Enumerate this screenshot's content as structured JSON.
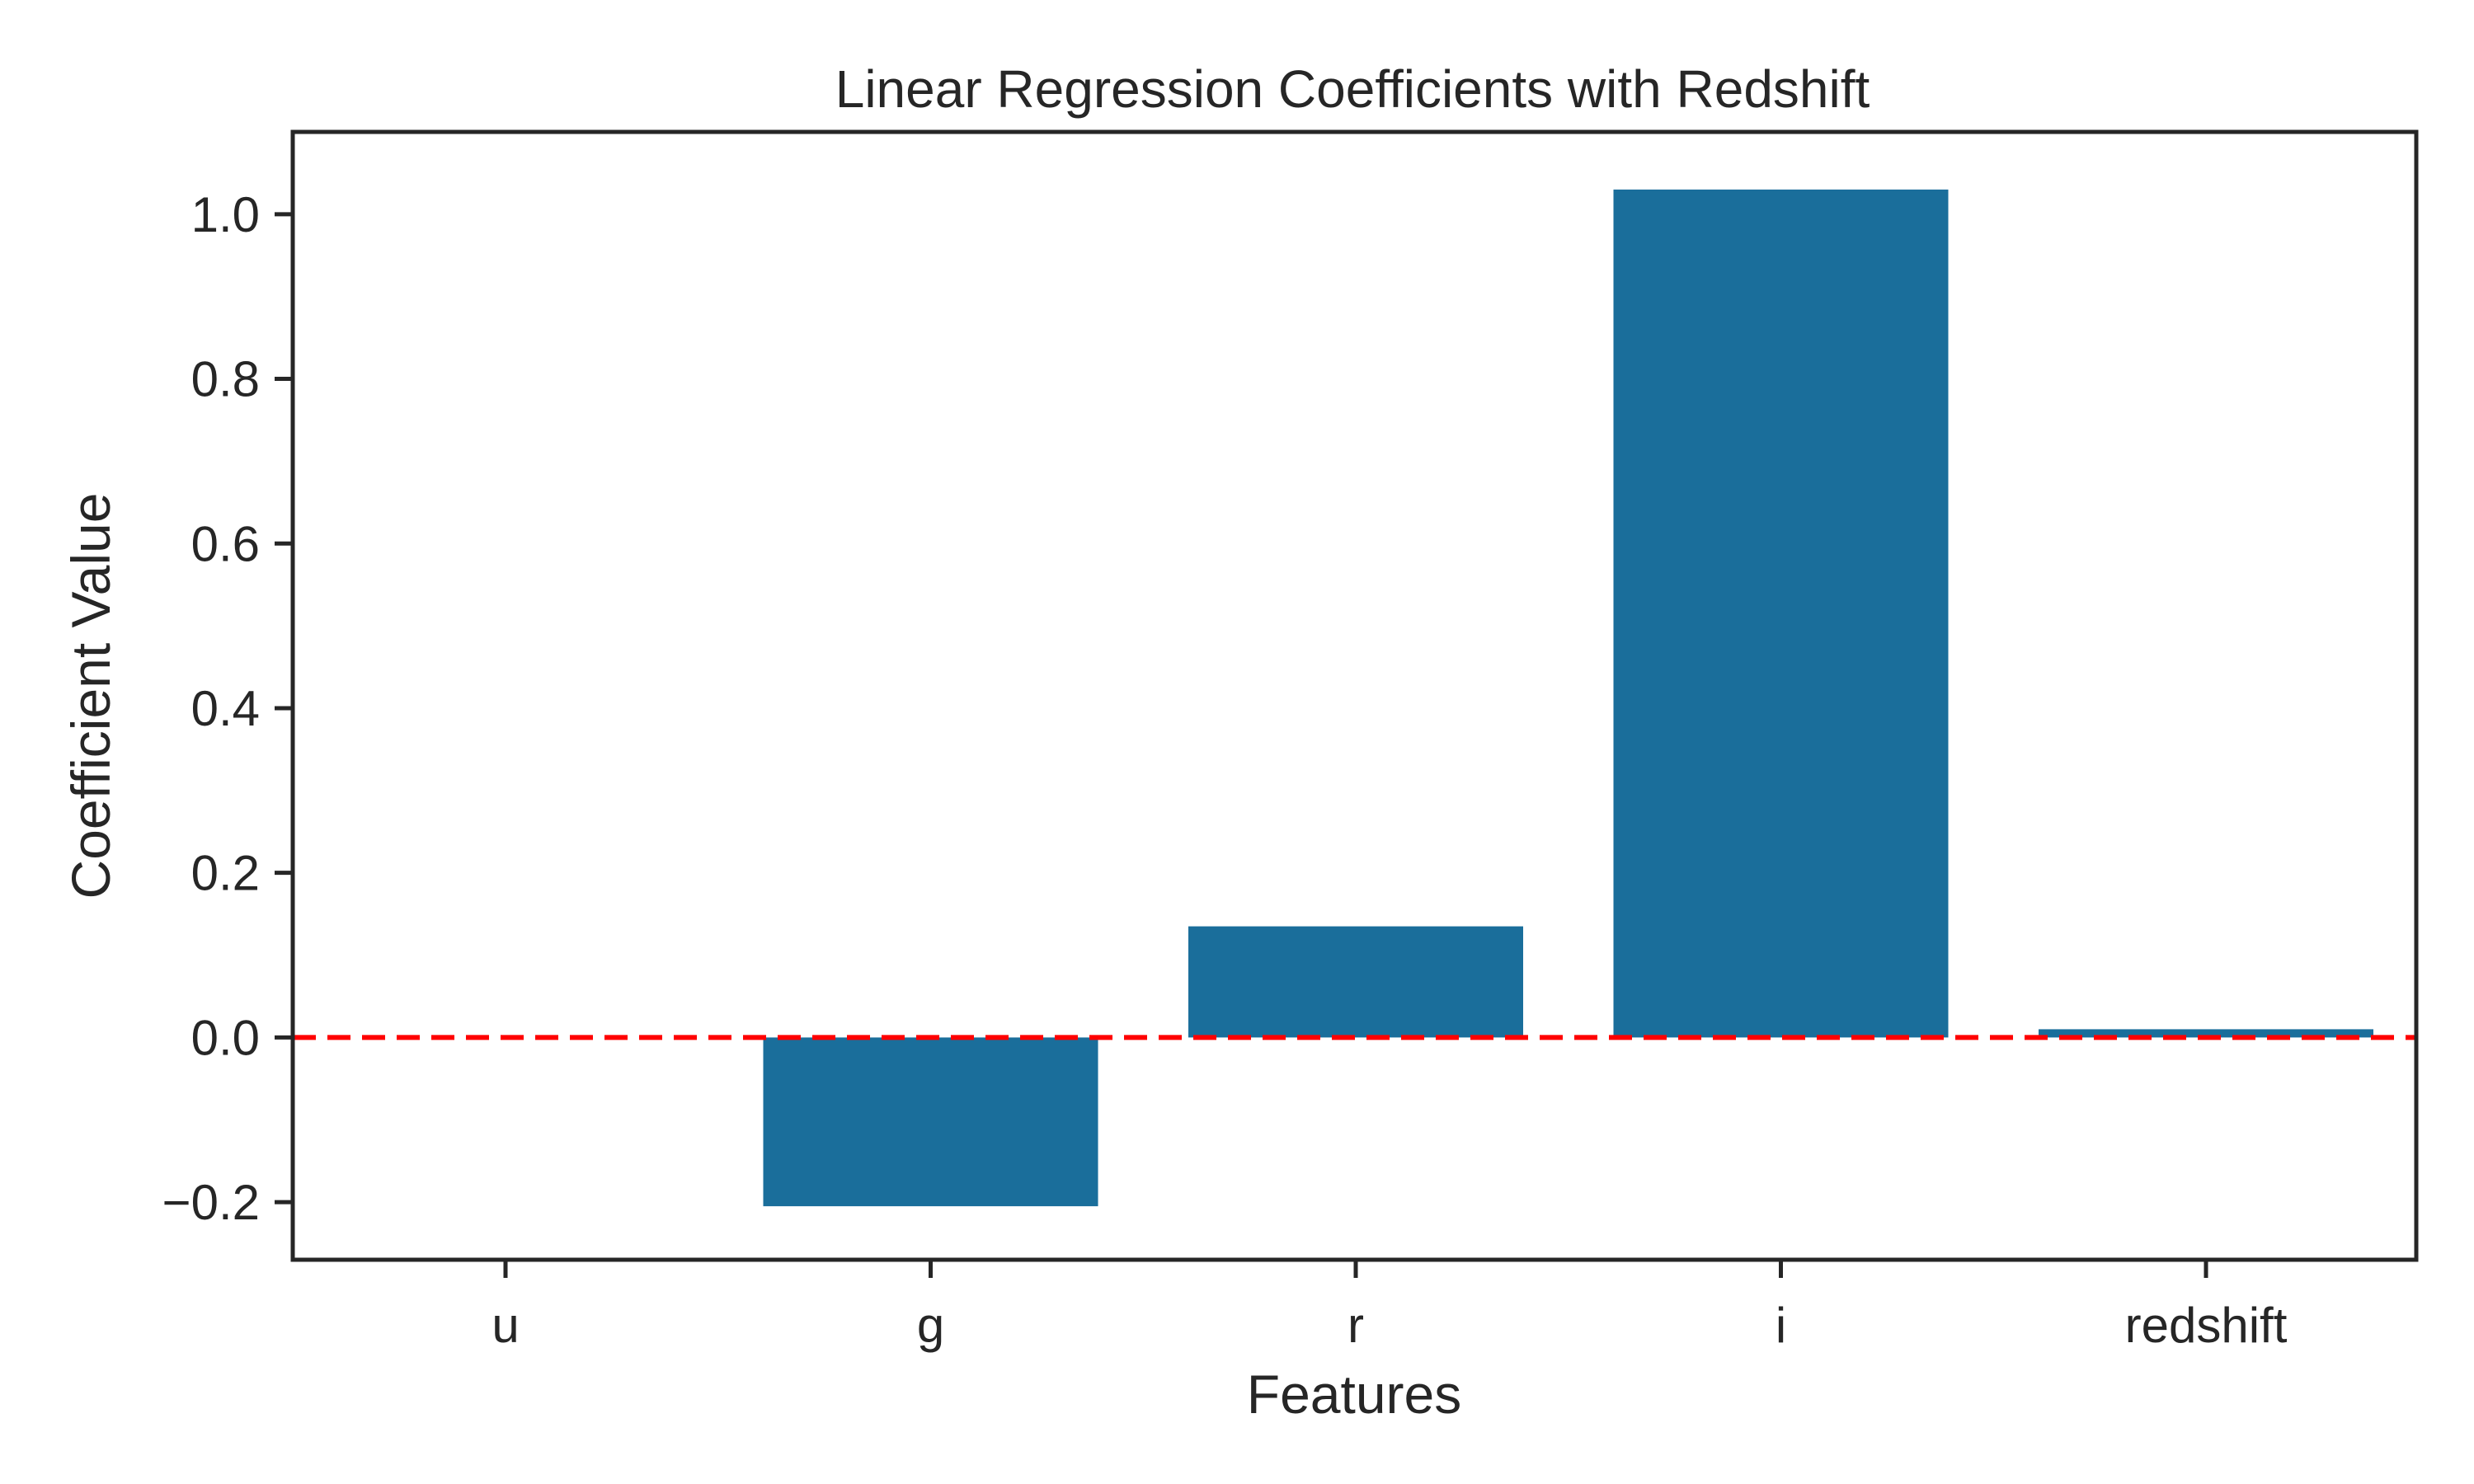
{
  "chart_data": {
    "type": "bar",
    "title": "Linear Regression Coefficients with Redshift",
    "xlabel": "Features",
    "ylabel": "Coefficient Value",
    "categories": [
      "u",
      "g",
      "r",
      "i",
      "redshift"
    ],
    "values": [
      0.0,
      -0.205,
      0.135,
      1.03,
      0.01
    ],
    "ylim": [
      -0.27,
      1.1
    ],
    "yticks": [
      -0.2,
      0.0,
      0.2,
      0.4,
      0.6,
      0.8,
      1.0
    ],
    "ytick_labels": [
      "−0.2",
      "0.0",
      "0.2",
      "0.4",
      "0.6",
      "0.8",
      "1.0"
    ],
    "reference_line": {
      "y": 0.0,
      "style": "dashed",
      "color": "#ff0000"
    },
    "bar_color": "#1a6e9b",
    "grid": false,
    "legend": "none"
  }
}
